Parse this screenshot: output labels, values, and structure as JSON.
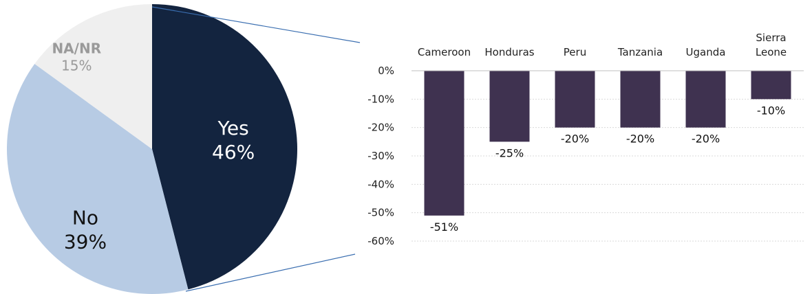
{
  "chart_data": [
    {
      "type": "pie",
      "categories": [
        "Yes",
        "No",
        "NA/NR"
      ],
      "values": [
        46,
        39,
        15
      ],
      "value_labels": [
        "46%",
        "39%",
        "15%"
      ],
      "colors": [
        "#13243f",
        "#b7cbe4",
        "#efefef"
      ],
      "label_colors": [
        "#ffffff",
        "#111111",
        "#9a9a9a"
      ]
    },
    {
      "type": "bar",
      "categories": [
        [
          "Cameroon"
        ],
        [
          "Honduras"
        ],
        [
          "Peru"
        ],
        [
          "Tanzania"
        ],
        [
          "Uganda"
        ],
        [
          "Sierra",
          "Leone"
        ]
      ],
      "values": [
        -51,
        -25,
        -20,
        -20,
        -20,
        -10
      ],
      "value_labels": [
        "-51%",
        "-25%",
        "-20%",
        "-20%",
        "-20%",
        "-10%"
      ],
      "ylim": [
        -60,
        0
      ],
      "yticks": [
        0,
        -10,
        -20,
        -30,
        -40,
        -50,
        -60
      ],
      "ytick_labels": [
        "0%",
        "-10%",
        "-20%",
        "-30%",
        "-40%",
        "-50%",
        "-60%"
      ],
      "grid": true,
      "bar_color": "#3f3250"
    }
  ],
  "callout_line_color": "#3a6eb0"
}
